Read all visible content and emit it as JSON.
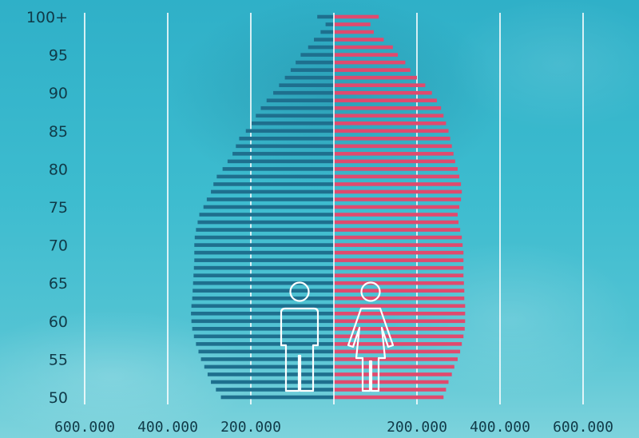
{
  "chart_data": {
    "type": "bar",
    "subtype": "population-pyramid",
    "ages": [
      50,
      51,
      52,
      53,
      54,
      55,
      56,
      57,
      58,
      59,
      60,
      61,
      62,
      63,
      64,
      65,
      66,
      67,
      68,
      69,
      70,
      71,
      72,
      73,
      74,
      75,
      76,
      77,
      78,
      79,
      80,
      81,
      82,
      83,
      84,
      85,
      86,
      87,
      88,
      89,
      90,
      91,
      92,
      93,
      94,
      95,
      96,
      97,
      98,
      99,
      100
    ],
    "series": [
      {
        "name": "",
        "side": "left",
        "values": [
          272000,
          284000,
          296000,
          304000,
          312000,
          320000,
          326000,
          332000,
          337000,
          341000,
          343000,
          344000,
          343000,
          341000,
          340000,
          339000,
          338000,
          337000,
          336000,
          336000,
          336000,
          335000,
          332000,
          328000,
          324000,
          314000,
          306000,
          296000,
          290000,
          282000,
          268000,
          256000,
          244000,
          236000,
          228000,
          212000,
          198000,
          188000,
          176000,
          162000,
          146000,
          132000,
          118000,
          104000,
          92000,
          80000,
          62000,
          48000,
          32000,
          20000,
          40000
        ]
      },
      {
        "name": "",
        "side": "right",
        "values": [
          264000,
          270000,
          276000,
          284000,
          290000,
          298000,
          304000,
          308000,
          312000,
          315000,
          316000,
          316000,
          316000,
          314000,
          314000,
          313000,
          312000,
          312000,
          312000,
          312000,
          310000,
          308000,
          304000,
          300000,
          298000,
          302000,
          306000,
          308000,
          306000,
          302000,
          298000,
          292000,
          288000,
          284000,
          280000,
          276000,
          270000,
          264000,
          258000,
          248000,
          236000,
          220000,
          200000,
          184000,
          172000,
          154000,
          142000,
          120000,
          96000,
          88000,
          108000
        ]
      }
    ],
    "y_tick_labels": [
      {
        "age": 50,
        "label": "50"
      },
      {
        "age": 55,
        "label": "55"
      },
      {
        "age": 60,
        "label": "60"
      },
      {
        "age": 65,
        "label": "65"
      },
      {
        "age": 70,
        "label": "70"
      },
      {
        "age": 75,
        "label": "75"
      },
      {
        "age": 80,
        "label": "80"
      },
      {
        "age": 85,
        "label": "85"
      },
      {
        "age": 90,
        "label": "90"
      },
      {
        "age": 95,
        "label": "95"
      },
      {
        "age": 100,
        "label": "100+"
      }
    ],
    "x_ticks": [
      {
        "value": -600000,
        "label": "600.000"
      },
      {
        "value": -400000,
        "label": "400.000"
      },
      {
        "value": -200000,
        "label": "200.000"
      },
      {
        "value": 200000,
        "label": "200.000"
      },
      {
        "value": 400000,
        "label": "400.000"
      },
      {
        "value": 600000,
        "label": "600.000"
      }
    ],
    "xlim": [
      -600000,
      600000
    ],
    "grid": true,
    "colors": {
      "left": "#1e6f8e",
      "right": "#e04a6e",
      "gridline": "#ffffff",
      "labels": "#103a48",
      "icons": "#ffffff"
    },
    "icons": [
      "male-figure-icon",
      "female-figure-icon"
    ]
  }
}
